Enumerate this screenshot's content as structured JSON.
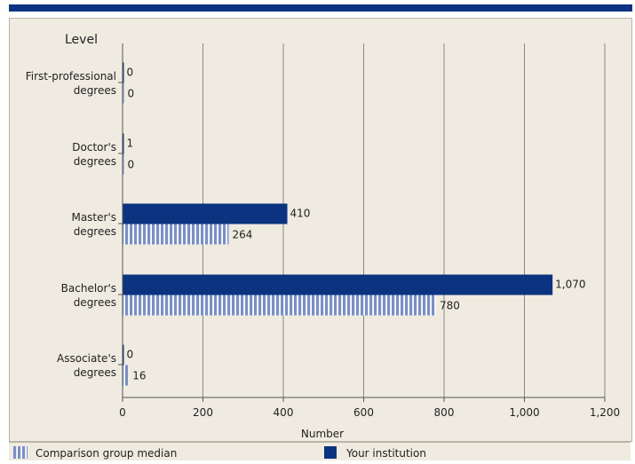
{
  "colors": {
    "your_institution": "#0b3380",
    "comparison_median": "#7a8fc4",
    "background": "#efebe0",
    "grid": "#8a8a8a"
  },
  "chart_data": {
    "type": "bar",
    "orientation": "horizontal",
    "ylabel": "Level",
    "xlabel": "Number",
    "xlim": [
      0,
      1200
    ],
    "xticks": [
      "0",
      "200",
      "400",
      "600",
      "800",
      "1,000",
      "1,200"
    ],
    "xtick_values": [
      0,
      200,
      400,
      600,
      800,
      1000,
      1200
    ],
    "grid": true,
    "legend_position": "bottom",
    "categories": [
      [
        "First-professional",
        "degrees"
      ],
      [
        "Doctor's",
        "degrees"
      ],
      [
        "Master's",
        "degrees"
      ],
      [
        "Bachelor's",
        "degrees"
      ],
      [
        "Associate's",
        "degrees"
      ]
    ],
    "series": [
      {
        "name": "Your institution",
        "values": [
          0,
          1,
          410,
          1070,
          0
        ],
        "labels": [
          "0",
          "1",
          "410",
          "1,070",
          "0"
        ]
      },
      {
        "name": "Comparison group median",
        "values": [
          0,
          0,
          264,
          780,
          16
        ],
        "labels": [
          "0",
          "0",
          "264",
          "780",
          "16"
        ]
      }
    ]
  },
  "legend": {
    "comparison_label": "Comparison group median",
    "institution_label": "Your institution"
  }
}
